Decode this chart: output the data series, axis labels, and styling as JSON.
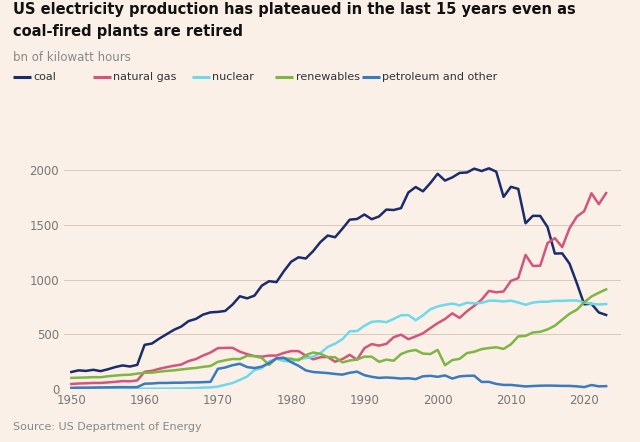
{
  "title_line1": "US electricity production has plateaued in the last 15 years even as",
  "title_line2": "coal-fired plants are retired",
  "ylabel": "bn of kilowatt hours",
  "source": "Source: US Department of Energy",
  "background_color": "#faf0e8",
  "ylim": [
    0,
    2100
  ],
  "xlim": [
    1949,
    2025
  ],
  "yticks": [
    0,
    500,
    1000,
    1500,
    2000
  ],
  "xticks": [
    1950,
    1960,
    1970,
    1980,
    1990,
    2000,
    2010,
    2020
  ],
  "legend": [
    {
      "label": "coal",
      "color": "#1b2c6b"
    },
    {
      "label": "natural gas",
      "color": "#d4547a"
    },
    {
      "label": "nuclear",
      "color": "#6dd9ea"
    },
    {
      "label": "renewables",
      "color": "#7eb642"
    },
    {
      "label": "petroleum and other",
      "color": "#3a7abf"
    }
  ],
  "series": {
    "coal": {
      "color": "#1b2c6b",
      "years": [
        1950,
        1951,
        1952,
        1953,
        1954,
        1955,
        1956,
        1957,
        1958,
        1959,
        1960,
        1961,
        1962,
        1963,
        1964,
        1965,
        1966,
        1967,
        1968,
        1969,
        1970,
        1971,
        1972,
        1973,
        1974,
        1975,
        1976,
        1977,
        1978,
        1979,
        1980,
        1981,
        1982,
        1983,
        1984,
        1985,
        1986,
        1987,
        1988,
        1989,
        1990,
        1991,
        1992,
        1993,
        1994,
        1995,
        1996,
        1997,
        1998,
        1999,
        2000,
        2001,
        2002,
        2003,
        2004,
        2005,
        2006,
        2007,
        2008,
        2009,
        2010,
        2011,
        2012,
        2013,
        2014,
        2015,
        2016,
        2017,
        2018,
        2019,
        2020,
        2021,
        2022,
        2023
      ],
      "values": [
        155,
        170,
        165,
        175,
        163,
        180,
        200,
        215,
        205,
        220,
        403,
        415,
        460,
        500,
        540,
        570,
        620,
        640,
        680,
        700,
        704,
        713,
        771,
        847,
        828,
        853,
        944,
        985,
        976,
        1075,
        1162,
        1203,
        1192,
        1259,
        1342,
        1402,
        1386,
        1464,
        1547,
        1553,
        1594,
        1551,
        1576,
        1639,
        1635,
        1652,
        1795,
        1845,
        1806,
        1881,
        1966,
        1904,
        1933,
        1974,
        1978,
        2013,
        1991,
        2016,
        1985,
        1755,
        1847,
        1828,
        1514,
        1582,
        1581,
        1479,
        1237,
        1239,
        1145,
        966,
        774,
        778,
        699,
        676
      ],
      "linewidth": 1.8
    },
    "natural_gas": {
      "color": "#d4547a",
      "years": [
        1950,
        1951,
        1952,
        1953,
        1954,
        1955,
        1956,
        1957,
        1958,
        1959,
        1960,
        1961,
        1962,
        1963,
        1964,
        1965,
        1966,
        1967,
        1968,
        1969,
        1970,
        1971,
        1972,
        1973,
        1974,
        1975,
        1976,
        1977,
        1978,
        1979,
        1980,
        1981,
        1982,
        1983,
        1984,
        1985,
        1986,
        1987,
        1988,
        1989,
        1990,
        1991,
        1992,
        1993,
        1994,
        1995,
        1996,
        1997,
        1998,
        1999,
        2000,
        2001,
        2002,
        2003,
        2004,
        2005,
        2006,
        2007,
        2008,
        2009,
        2010,
        2011,
        2012,
        2013,
        2014,
        2015,
        2016,
        2017,
        2018,
        2019,
        2020,
        2021,
        2022,
        2023
      ],
      "values": [
        45,
        50,
        52,
        55,
        55,
        60,
        65,
        72,
        70,
        78,
        157,
        166,
        184,
        199,
        212,
        223,
        255,
        273,
        306,
        333,
        373,
        375,
        376,
        341,
        318,
        300,
        295,
        305,
        305,
        329,
        346,
        346,
        305,
        271,
        290,
        292,
        249,
        273,
        312,
        267,
        373,
        410,
        396,
        412,
        473,
        496,
        455,
        480,
        509,
        556,
        601,
        639,
        691,
        649,
        710,
        760,
        816,
        896,
        883,
        891,
        987,
        1013,
        1225,
        1124,
        1126,
        1333,
        1378,
        1296,
        1468,
        1575,
        1624,
        1788,
        1688,
        1790
      ],
      "linewidth": 1.8
    },
    "nuclear": {
      "color": "#6dd9ea",
      "years": [
        1950,
        1951,
        1952,
        1953,
        1954,
        1955,
        1956,
        1957,
        1958,
        1959,
        1960,
        1961,
        1962,
        1963,
        1964,
        1965,
        1966,
        1967,
        1968,
        1969,
        1970,
        1971,
        1972,
        1973,
        1974,
        1975,
        1976,
        1977,
        1978,
        1979,
        1980,
        1981,
        1982,
        1983,
        1984,
        1985,
        1986,
        1987,
        1988,
        1989,
        1990,
        1991,
        1992,
        1993,
        1994,
        1995,
        1996,
        1997,
        1998,
        1999,
        2000,
        2001,
        2002,
        2003,
        2004,
        2005,
        2006,
        2007,
        2008,
        2009,
        2010,
        2011,
        2012,
        2013,
        2014,
        2015,
        2016,
        2017,
        2018,
        2019,
        2020,
        2021,
        2022,
        2023
      ],
      "values": [
        1,
        1,
        1,
        1,
        1,
        1,
        1,
        1,
        2,
        2,
        2,
        2,
        3,
        3,
        4,
        4,
        6,
        8,
        13,
        14,
        22,
        38,
        54,
        83,
        114,
        173,
        191,
        251,
        276,
        255,
        251,
        273,
        282,
        294,
        328,
        384,
        414,
        455,
        527,
        529,
        577,
        613,
        619,
        610,
        640,
        673,
        675,
        628,
        673,
        728,
        754,
        769,
        780,
        764,
        788,
        782,
        787,
        806,
        806,
        799,
        807,
        790,
        769,
        789,
        797,
        797,
        805,
        805,
        808,
        809,
        790,
        778,
        772,
        776
      ],
      "linewidth": 1.8
    },
    "renewables": {
      "color": "#7eb642",
      "years": [
        1950,
        1951,
        1952,
        1953,
        1954,
        1955,
        1956,
        1957,
        1958,
        1959,
        1960,
        1961,
        1962,
        1963,
        1964,
        1965,
        1966,
        1967,
        1968,
        1969,
        1970,
        1971,
        1972,
        1973,
        1974,
        1975,
        1976,
        1977,
        1978,
        1979,
        1980,
        1981,
        1982,
        1983,
        1984,
        1985,
        1986,
        1987,
        1988,
        1989,
        1990,
        1991,
        1992,
        1993,
        1994,
        1995,
        1996,
        1997,
        1998,
        1999,
        2000,
        2001,
        2002,
        2003,
        2004,
        2005,
        2006,
        2007,
        2008,
        2009,
        2010,
        2011,
        2012,
        2013,
        2014,
        2015,
        2016,
        2017,
        2018,
        2019,
        2020,
        2021,
        2022,
        2023
      ],
      "values": [
        101,
        103,
        105,
        108,
        107,
        116,
        122,
        128,
        130,
        140,
        148,
        149,
        158,
        165,
        170,
        178,
        186,
        192,
        202,
        210,
        248,
        262,
        274,
        273,
        303,
        300,
        283,
        220,
        280,
        280,
        276,
        261,
        309,
        333,
        321,
        291,
        290,
        243,
        260,
        269,
        295,
        295,
        248,
        268,
        258,
        319,
        345,
        356,
        323,
        319,
        357,
        217,
        264,
        275,
        328,
        340,
        364,
        374,
        381,
        366,
        408,
        480,
        485,
        516,
        522,
        544,
        578,
        633,
        687,
        724,
        792,
        845,
        879,
        910
      ],
      "linewidth": 1.8
    },
    "petroleum": {
      "color": "#3a7abf",
      "years": [
        1950,
        1951,
        1952,
        1953,
        1954,
        1955,
        1956,
        1957,
        1958,
        1959,
        1960,
        1961,
        1962,
        1963,
        1964,
        1965,
        1966,
        1967,
        1968,
        1969,
        1970,
        1971,
        1972,
        1973,
        1974,
        1975,
        1976,
        1977,
        1978,
        1979,
        1980,
        1981,
        1982,
        1983,
        1984,
        1985,
        1986,
        1987,
        1988,
        1989,
        1990,
        1991,
        1992,
        1993,
        1994,
        1995,
        1996,
        1997,
        1998,
        1999,
        2000,
        2001,
        2002,
        2003,
        2004,
        2005,
        2006,
        2007,
        2008,
        2009,
        2010,
        2011,
        2012,
        2013,
        2014,
        2015,
        2016,
        2017,
        2018,
        2019,
        2020,
        2021,
        2022,
        2023
      ],
      "values": [
        10,
        12,
        12,
        13,
        14,
        15,
        16,
        17,
        16,
        17,
        48,
        50,
        55,
        55,
        57,
        57,
        60,
        60,
        62,
        65,
        184,
        196,
        217,
        230,
        200,
        191,
        204,
        235,
        280,
        286,
        245,
        212,
        170,
        155,
        150,
        145,
        137,
        131,
        148,
        158,
        126,
        111,
        101,
        105,
        101,
        95,
        98,
        90,
        116,
        120,
        111,
        124,
        95,
        115,
        120,
        121,
        64,
        65,
        46,
        37,
        37,
        30,
        23,
        27,
        30,
        31,
        30,
        28,
        28,
        24,
        17,
        36,
        24,
        26
      ],
      "linewidth": 1.8
    }
  }
}
